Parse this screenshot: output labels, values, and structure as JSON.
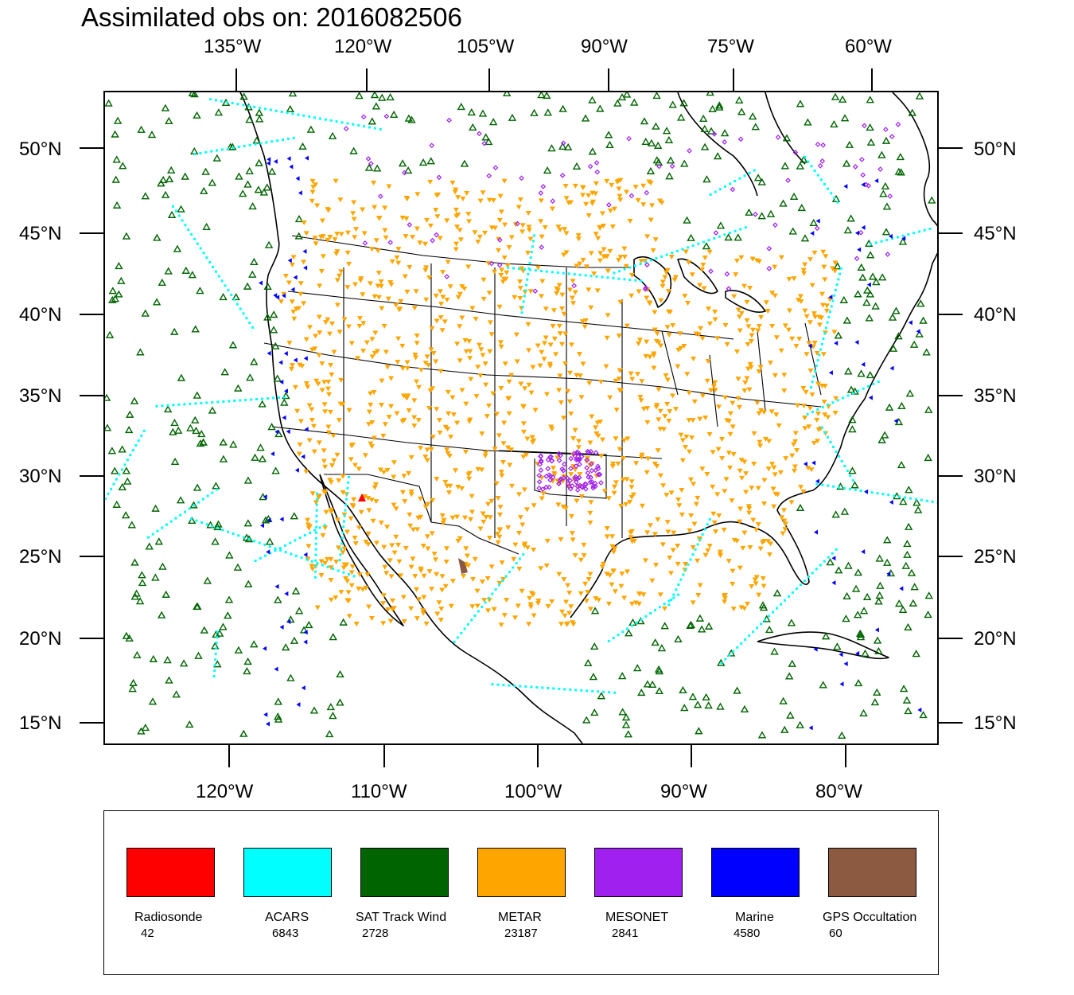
{
  "title": "Assimilated obs on: 2016082506",
  "top_lon_labels": [
    "135°W",
    "120°W",
    "105°W",
    "90°W",
    "75°W",
    "60°W"
  ],
  "bottom_lon_labels": [
    "120°W",
    "110°W",
    "100°W",
    "90°W",
    "80°W"
  ],
  "lat_labels": [
    "50°N",
    "45°N",
    "40°N",
    "35°N",
    "30°N",
    "25°N",
    "20°N",
    "15°N"
  ],
  "legend": [
    {
      "name": "Radiosonde",
      "count": "42",
      "color": "#ff0000",
      "icon": "triangle-up-icon"
    },
    {
      "name": "ACARS",
      "count": "6843",
      "color": "#00ffff",
      "icon": "square-icon"
    },
    {
      "name": "SAT Track Wind",
      "count": "2728",
      "color": "#006400",
      "icon": "triangle-up-icon"
    },
    {
      "name": "METAR",
      "count": "23187",
      "color": "#ffa500",
      "icon": "triangle-down-icon"
    },
    {
      "name": "MESONET",
      "count": "2841",
      "color": "#a020f0",
      "icon": "diamond-icon"
    },
    {
      "name": "Marine",
      "count": "4580",
      "color": "#0000ff",
      "icon": "triangle-left-icon"
    },
    {
      "name": "GPS Occultation",
      "count": "60",
      "color": "#8b5a40",
      "icon": "filled-marker-icon"
    }
  ]
}
